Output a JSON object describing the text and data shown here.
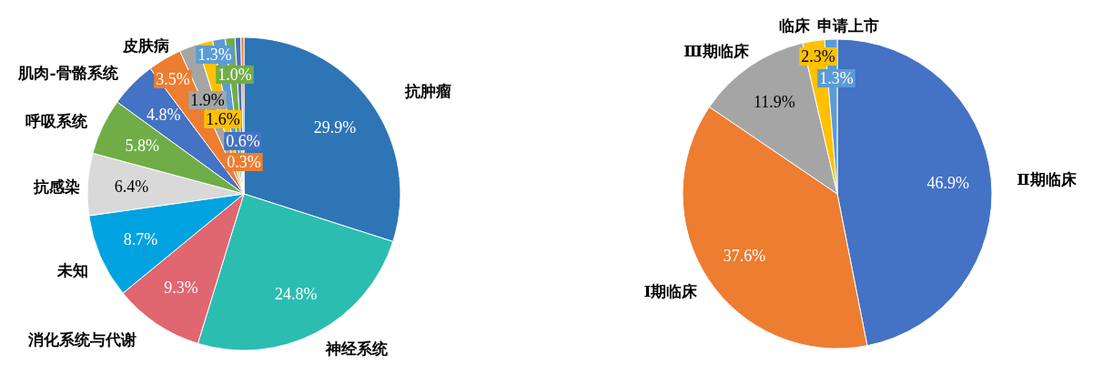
{
  "chart_data": [
    {
      "type": "pie",
      "categories": [
        "抗肿瘤",
        "神经系统",
        "消化系统与代谢",
        "未知",
        "抗感染",
        "呼吸系统",
        "肌肉-骨骼系统",
        "皮肤病",
        null,
        null,
        null,
        null,
        null,
        null
      ],
      "values": [
        29.9,
        24.8,
        9.3,
        8.7,
        6.4,
        5.8,
        4.8,
        3.5,
        1.9,
        1.6,
        1.3,
        1.0,
        0.6,
        0.3
      ],
      "colors": [
        "#2e75b6",
        "#2bbdb0",
        "#e06670",
        "#00a3e0",
        "#d9d9d9",
        "#70ad47",
        "#4472c4",
        "#ed7d31",
        "#a5a5a5",
        "#ffc000",
        "#5b9bd5",
        "#70ad47",
        "#4472c4",
        "#ed7d31"
      ],
      "value_labels": [
        "29.9%",
        "24.8%",
        "9.3%",
        "8.7%",
        "6.4%",
        "5.8%",
        "4.8%",
        "3.5%",
        "1.9%",
        "1.6%",
        "1.3%",
        "1.0%",
        "0.6%",
        "0.3%"
      ]
    },
    {
      "type": "pie",
      "categories": [
        "Ⅱ期临床",
        "Ⅰ期临床",
        "Ⅲ期临床",
        "临床",
        "申请上市"
      ],
      "values": [
        46.9,
        37.6,
        11.9,
        2.3,
        1.3
      ],
      "colors": [
        "#4472c4",
        "#ed7d31",
        "#a5a5a5",
        "#ffc000",
        "#5b9bd5"
      ],
      "value_labels": [
        "46.9%",
        "37.6%",
        "11.9%",
        "2.3%",
        "1.3%"
      ]
    }
  ]
}
